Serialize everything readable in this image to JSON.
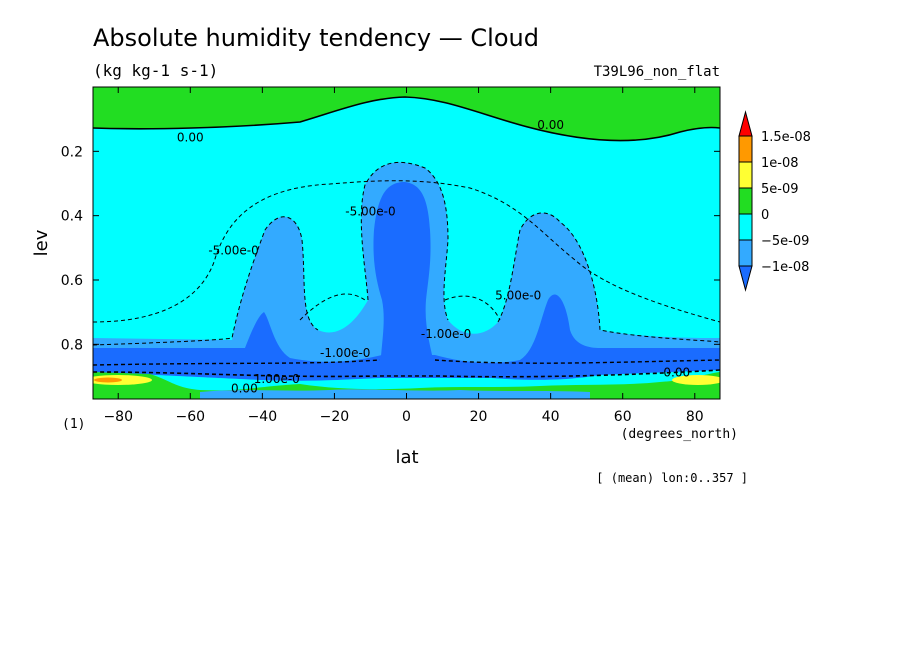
{
  "chart_data": {
    "type": "heatmap",
    "title": "Absolute humidity tendency — Cloud",
    "units": "(kg kg-1 s-1)",
    "run_label": "T39L96_non_flat",
    "xlabel": "lat",
    "xunits": "(degrees_north)",
    "ylabel": "lev",
    "yunits": "(1)",
    "footnote": "[ (mean) lon:0..357 ]",
    "xlim": [
      -87,
      87
    ],
    "ylim": [
      0.0,
      0.97
    ],
    "y_inverted": true,
    "x_ticks": [
      -80,
      -60,
      -40,
      -20,
      0,
      20,
      40,
      60,
      80
    ],
    "y_ticks": [
      0.2,
      0.4,
      0.6,
      0.8
    ],
    "y_tick_labels": [
      "0.2",
      "0.4",
      "0.6",
      "0.8"
    ],
    "x_tick_labels": [
      "−80",
      "−60",
      "−40",
      "−20",
      "0",
      "20",
      "40",
      "60",
      "80"
    ],
    "colorbar": {
      "labels": [
        "1.5e-08",
        "1e-08",
        "5e-09",
        "0",
        "−5e-09",
        "−1e-08"
      ],
      "colors": [
        "#ff0000",
        "#ff9900",
        "#ffff33",
        "#22dd22",
        "#00ffff",
        "#33aaff",
        "#1a6cff"
      ],
      "extend": "both"
    },
    "contour_labels": [
      {
        "text": "0.00",
        "lat": -60,
        "lev": 0.17
      },
      {
        "text": "0.00",
        "lat": 40,
        "lev": 0.13
      },
      {
        "text": "-5.00e-0",
        "lat": -48,
        "lev": 0.52
      },
      {
        "text": "-5.00e-0",
        "lat": -10,
        "lev": 0.4
      },
      {
        "text": "5.00e-0",
        "lat": 31,
        "lev": 0.66
      },
      {
        "text": "-1.00e-0",
        "lat": -17,
        "lev": 0.84
      },
      {
        "text": "-1.00e-0",
        "lat": 11,
        "lev": 0.78
      },
      {
        "text": "1.00e-0",
        "lat": -36,
        "lev": 0.92
      },
      {
        "text": "0.00",
        "lat": -45,
        "lev": 0.95
      },
      {
        "text": "0.00",
        "lat": 75,
        "lev": 0.9
      }
    ]
  }
}
